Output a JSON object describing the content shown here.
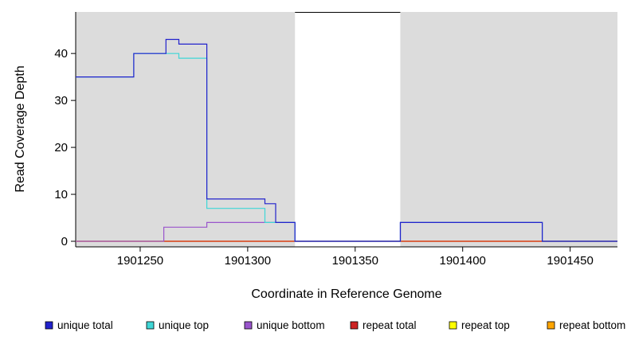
{
  "chart_data": {
    "type": "line",
    "subtype": "step-post",
    "title": "",
    "xlabel": "Coordinate in Reference Genome",
    "ylabel": "Read Coverage Depth",
    "xlim": [
      1901220,
      1901472
    ],
    "ylim": [
      0,
      48
    ],
    "xticks": [
      1901250,
      1901300,
      1901350,
      1901400,
      1901450
    ],
    "yticks": [
      0,
      10,
      20,
      30,
      40
    ],
    "grid": "off",
    "plot_background": "#DCDCDC",
    "outer_background": "#FFFFFF",
    "masked_region": {
      "xstart": 1901322,
      "xend": 1901371,
      "fill": "#FFFFFF",
      "top_border_color": "#000000"
    },
    "legend_position": "bottom",
    "series": [
      {
        "name": "repeat top",
        "color": "#FFFF00",
        "points": [
          [
            1901220,
            0
          ],
          [
            1901472,
            0
          ]
        ]
      },
      {
        "name": "repeat bottom",
        "color": "#FFA500",
        "points": [
          [
            1901220,
            0
          ],
          [
            1901472,
            0
          ]
        ]
      },
      {
        "name": "repeat total",
        "color": "#CC2222",
        "points": [
          [
            1901220,
            0
          ],
          [
            1901472,
            0
          ]
        ]
      },
      {
        "name": "unique bottom",
        "color": "#9955CC",
        "points": [
          [
            1901220,
            0
          ],
          [
            1901261,
            3
          ],
          [
            1901281,
            4
          ],
          [
            1901322,
            0
          ],
          [
            1901371,
            4
          ],
          [
            1901437,
            0
          ],
          [
            1901472,
            0
          ]
        ]
      },
      {
        "name": "unique top",
        "color": "#3FD6D6",
        "points": [
          [
            1901220,
            35
          ],
          [
            1901247,
            40
          ],
          [
            1901262,
            40
          ],
          [
            1901268,
            39
          ],
          [
            1901281,
            7
          ],
          [
            1901308,
            4
          ],
          [
            1901322,
            0
          ],
          [
            1901371,
            4
          ],
          [
            1901437,
            0
          ],
          [
            1901472,
            0
          ]
        ]
      },
      {
        "name": "unique total",
        "color": "#2222CC",
        "points": [
          [
            1901220,
            35
          ],
          [
            1901247,
            40
          ],
          [
            1901262,
            43
          ],
          [
            1901268,
            42
          ],
          [
            1901281,
            9
          ],
          [
            1901308,
            8
          ],
          [
            1901313,
            4
          ],
          [
            1901322,
            0
          ],
          [
            1901371,
            4
          ],
          [
            1901437,
            0
          ],
          [
            1901472,
            0
          ]
        ]
      }
    ],
    "legend": [
      {
        "label": "unique total",
        "color": "#2222CC"
      },
      {
        "label": "unique top",
        "color": "#3FD6D6"
      },
      {
        "label": "unique bottom",
        "color": "#9955CC"
      },
      {
        "label": "repeat total",
        "color": "#CC2222"
      },
      {
        "label": "repeat top",
        "color": "#FFFF00"
      },
      {
        "label": "repeat bottom",
        "color": "#FFA500"
      }
    ]
  }
}
